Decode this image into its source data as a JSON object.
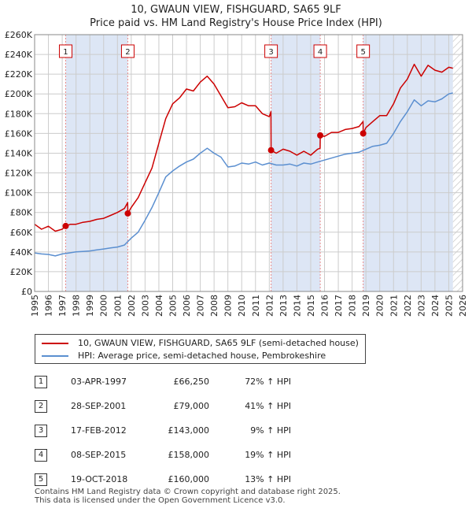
{
  "title": "10, GWAUN VIEW, FISHGUARD, SA65 9LF",
  "subtitle": "Price paid vs. HM Land Registry's House Price Index (HPI)",
  "colors": {
    "price": "#cc0000",
    "hpi": "#5b8fd0",
    "band": "#dde6f5",
    "marker_line": "#e88a8a",
    "grid": "#cccccc"
  },
  "chart_data": {
    "type": "line",
    "x_range": [
      1995,
      2026
    ],
    "y_range": [
      0,
      260000
    ],
    "y_ticks": [
      {
        "v": 0,
        "label": "£0"
      },
      {
        "v": 20000,
        "label": "£20K"
      },
      {
        "v": 40000,
        "label": "£40K"
      },
      {
        "v": 60000,
        "label": "£60K"
      },
      {
        "v": 80000,
        "label": "£80K"
      },
      {
        "v": 100000,
        "label": "£100K"
      },
      {
        "v": 120000,
        "label": "£120K"
      },
      {
        "v": 140000,
        "label": "£140K"
      },
      {
        "v": 160000,
        "label": "£160K"
      },
      {
        "v": 180000,
        "label": "£180K"
      },
      {
        "v": 200000,
        "label": "£200K"
      },
      {
        "v": 220000,
        "label": "£220K"
      },
      {
        "v": 240000,
        "label": "£240K"
      },
      {
        "v": 260000,
        "label": "£260K"
      }
    ],
    "x_ticks": [
      "1995",
      "1996",
      "1997",
      "1998",
      "1999",
      "2000",
      "2001",
      "2002",
      "2003",
      "2004",
      "2005",
      "2006",
      "2007",
      "2008",
      "2009",
      "2010",
      "2011",
      "2012",
      "2013",
      "2014",
      "2015",
      "2016",
      "2017",
      "2018",
      "2019",
      "2020",
      "2021",
      "2022",
      "2023",
      "2024",
      "2025",
      "2026"
    ],
    "grid": true,
    "shaded_ranges": [
      [
        1997.25,
        2001.75
      ],
      [
        2012.13,
        2015.69
      ],
      [
        2018.8,
        2025.3
      ]
    ],
    "hatched_range": [
      2025.3,
      2026
    ],
    "series": [
      {
        "name": "10, GWAUN VIEW, FISHGUARD, SA65 9LF (semi-detached house)",
        "color": "#cc0000",
        "points": [
          [
            1995.0,
            68000
          ],
          [
            1995.5,
            63000
          ],
          [
            1996.0,
            66000
          ],
          [
            1996.5,
            61000
          ],
          [
            1997.0,
            63000
          ],
          [
            1997.25,
            66250
          ],
          [
            1997.6,
            68000
          ],
          [
            1998.0,
            68000
          ],
          [
            1998.5,
            70000
          ],
          [
            1999.0,
            71000
          ],
          [
            1999.5,
            73000
          ],
          [
            2000.0,
            74000
          ],
          [
            2000.5,
            77000
          ],
          [
            2001.0,
            80000
          ],
          [
            2001.5,
            84000
          ],
          [
            2001.74,
            90000
          ],
          [
            2001.75,
            79000
          ],
          [
            2002.0,
            85000
          ],
          [
            2002.5,
            95000
          ],
          [
            2003.0,
            110000
          ],
          [
            2003.5,
            125000
          ],
          [
            2004.0,
            150000
          ],
          [
            2004.5,
            175000
          ],
          [
            2005.0,
            190000
          ],
          [
            2005.5,
            196000
          ],
          [
            2006.0,
            205000
          ],
          [
            2006.5,
            203000
          ],
          [
            2007.0,
            212000
          ],
          [
            2007.5,
            218000
          ],
          [
            2008.0,
            210000
          ],
          [
            2008.5,
            198000
          ],
          [
            2009.0,
            186000
          ],
          [
            2009.5,
            187000
          ],
          [
            2010.0,
            191000
          ],
          [
            2010.5,
            188000
          ],
          [
            2011.0,
            188000
          ],
          [
            2011.5,
            180000
          ],
          [
            2012.0,
            177000
          ],
          [
            2012.12,
            182000
          ],
          [
            2012.13,
            143000
          ],
          [
            2012.5,
            140000
          ],
          [
            2013.0,
            144000
          ],
          [
            2013.5,
            142000
          ],
          [
            2014.0,
            138000
          ],
          [
            2014.5,
            142000
          ],
          [
            2015.0,
            138000
          ],
          [
            2015.5,
            144000
          ],
          [
            2015.68,
            145000
          ],
          [
            2015.69,
            158000
          ],
          [
            2016.0,
            157000
          ],
          [
            2016.5,
            161000
          ],
          [
            2017.0,
            161000
          ],
          [
            2017.5,
            164000
          ],
          [
            2018.0,
            165000
          ],
          [
            2018.5,
            167000
          ],
          [
            2018.79,
            172000
          ],
          [
            2018.8,
            160000
          ],
          [
            2019.0,
            166000
          ],
          [
            2019.5,
            172000
          ],
          [
            2020.0,
            178000
          ],
          [
            2020.5,
            178000
          ],
          [
            2021.0,
            190000
          ],
          [
            2021.5,
            206000
          ],
          [
            2022.0,
            215000
          ],
          [
            2022.5,
            230000
          ],
          [
            2023.0,
            218000
          ],
          [
            2023.5,
            229000
          ],
          [
            2024.0,
            224000
          ],
          [
            2024.5,
            222000
          ],
          [
            2025.0,
            227000
          ],
          [
            2025.3,
            226000
          ]
        ]
      },
      {
        "name": "HPI: Average price, semi-detached house, Pembrokeshire",
        "color": "#5b8fd0",
        "points": [
          [
            1995.0,
            39000
          ],
          [
            1995.5,
            38000
          ],
          [
            1996.0,
            37500
          ],
          [
            1996.5,
            36000
          ],
          [
            1997.0,
            38000
          ],
          [
            1997.5,
            39000
          ],
          [
            1998.0,
            40000
          ],
          [
            1998.5,
            40500
          ],
          [
            1999.0,
            41000
          ],
          [
            1999.5,
            42000
          ],
          [
            2000.0,
            43000
          ],
          [
            2000.5,
            44000
          ],
          [
            2001.0,
            45000
          ],
          [
            2001.5,
            47000
          ],
          [
            2002.0,
            54000
          ],
          [
            2002.5,
            60000
          ],
          [
            2003.0,
            72000
          ],
          [
            2003.5,
            85000
          ],
          [
            2004.0,
            100000
          ],
          [
            2004.5,
            116000
          ],
          [
            2005.0,
            122000
          ],
          [
            2005.5,
            127000
          ],
          [
            2006.0,
            131000
          ],
          [
            2006.5,
            134000
          ],
          [
            2007.0,
            140000
          ],
          [
            2007.5,
            145000
          ],
          [
            2008.0,
            140000
          ],
          [
            2008.5,
            136000
          ],
          [
            2009.0,
            126000
          ],
          [
            2009.5,
            127000
          ],
          [
            2010.0,
            130000
          ],
          [
            2010.5,
            129000
          ],
          [
            2011.0,
            131000
          ],
          [
            2011.5,
            128000
          ],
          [
            2012.0,
            130000
          ],
          [
            2012.5,
            128000
          ],
          [
            2013.0,
            128000
          ],
          [
            2013.5,
            129000
          ],
          [
            2014.0,
            127000
          ],
          [
            2014.5,
            130000
          ],
          [
            2015.0,
            129000
          ],
          [
            2015.5,
            131000
          ],
          [
            2016.0,
            133000
          ],
          [
            2016.5,
            135000
          ],
          [
            2017.0,
            137000
          ],
          [
            2017.5,
            139000
          ],
          [
            2018.0,
            140000
          ],
          [
            2018.5,
            141000
          ],
          [
            2019.0,
            144000
          ],
          [
            2019.5,
            147000
          ],
          [
            2020.0,
            148000
          ],
          [
            2020.5,
            150000
          ],
          [
            2021.0,
            160000
          ],
          [
            2021.5,
            172000
          ],
          [
            2022.0,
            182000
          ],
          [
            2022.5,
            194000
          ],
          [
            2023.0,
            188000
          ],
          [
            2023.5,
            193000
          ],
          [
            2024.0,
            192000
          ],
          [
            2024.5,
            195000
          ],
          [
            2025.0,
            200000
          ],
          [
            2025.3,
            201000
          ]
        ]
      }
    ],
    "sales": [
      {
        "n": "1",
        "x": 1997.25,
        "y": 66250
      },
      {
        "n": "2",
        "x": 2001.75,
        "y": 79000
      },
      {
        "n": "3",
        "x": 2012.13,
        "y": 143000
      },
      {
        "n": "4",
        "x": 2015.69,
        "y": 158000
      },
      {
        "n": "5",
        "x": 2018.8,
        "y": 160000
      }
    ]
  },
  "legend": {
    "price_label": "10, GWAUN VIEW, FISHGUARD, SA65 9LF (semi-detached house)",
    "hpi_label": "HPI: Average price, semi-detached house, Pembrokeshire"
  },
  "transactions": [
    {
      "n": "1",
      "date": "03-APR-1997",
      "price": "£66,250",
      "hpi": "72% ↑ HPI"
    },
    {
      "n": "2",
      "date": "28-SEP-2001",
      "price": "£79,000",
      "hpi": "41% ↑ HPI"
    },
    {
      "n": "3",
      "date": "17-FEB-2012",
      "price": "£143,000",
      "hpi": "9% ↑ HPI"
    },
    {
      "n": "4",
      "date": "08-SEP-2015",
      "price": "£158,000",
      "hpi": "19% ↑ HPI"
    },
    {
      "n": "5",
      "date": "19-OCT-2018",
      "price": "£160,000",
      "hpi": "13% ↑ HPI"
    }
  ],
  "footer": {
    "line1": "Contains HM Land Registry data © Crown copyright and database right 2025.",
    "line2": "This data is licensed under the Open Government Licence v3.0."
  }
}
